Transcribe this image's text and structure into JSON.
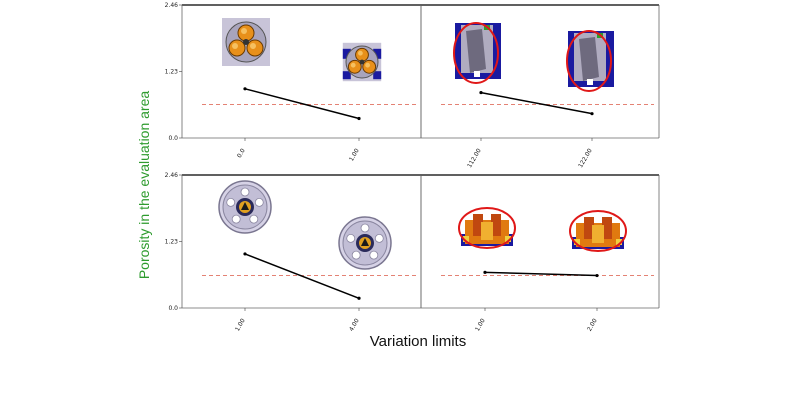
{
  "figure": {
    "ylabel": "Porosity in the evaluation area",
    "xlabel": "Variation limits",
    "ylabel_color": "#2e9b2e",
    "line_color": "#000000",
    "threshold_color": "#e07060"
  },
  "chart_data": [
    {
      "type": "line",
      "panel": "top-left",
      "categories": [
        "0.0",
        "1.00"
      ],
      "values": [
        0.91,
        0.36
      ],
      "yticks": [
        "2.46",
        "1.23",
        "0.0"
      ],
      "ylim": [
        0,
        2.46
      ],
      "threshold": 0.62,
      "images": [
        {
          "icon": "rim-rotor-cutaway-image",
          "kind": "rotor"
        },
        {
          "icon": "rim-rotor-small-image",
          "kind": "rotor-small"
        }
      ]
    },
    {
      "type": "line",
      "panel": "top-right",
      "categories": [
        "112.00",
        "122.00"
      ],
      "values": [
        0.84,
        0.45
      ],
      "yticks": [],
      "ylim": [
        0,
        2.46
      ],
      "threshold": 0.62,
      "images": [
        {
          "icon": "casting-section-highlight-image",
          "kind": "section"
        },
        {
          "icon": "casting-section-highlight-image",
          "kind": "section"
        }
      ]
    },
    {
      "type": "line",
      "panel": "bottom-left",
      "categories": [
        "1.00",
        "4.00"
      ],
      "values": [
        1.0,
        0.18
      ],
      "yticks": [
        "2.46",
        "1.23",
        "0.0"
      ],
      "ylim": [
        0,
        2.46
      ],
      "threshold": 0.6,
      "images": [
        {
          "icon": "wheel-hub-image",
          "kind": "wheel"
        },
        {
          "icon": "wheel-hub-image",
          "kind": "wheel"
        }
      ]
    },
    {
      "type": "line",
      "panel": "bottom-right",
      "categories": [
        "1.00",
        "2.00"
      ],
      "values": [
        0.66,
        0.6
      ],
      "yticks": [],
      "ylim": [
        0,
        2.46
      ],
      "threshold": 0.6,
      "images": [
        {
          "icon": "hub-casting-highlight-image",
          "kind": "hub"
        },
        {
          "icon": "hub-casting-highlight-image",
          "kind": "hub"
        }
      ]
    }
  ]
}
